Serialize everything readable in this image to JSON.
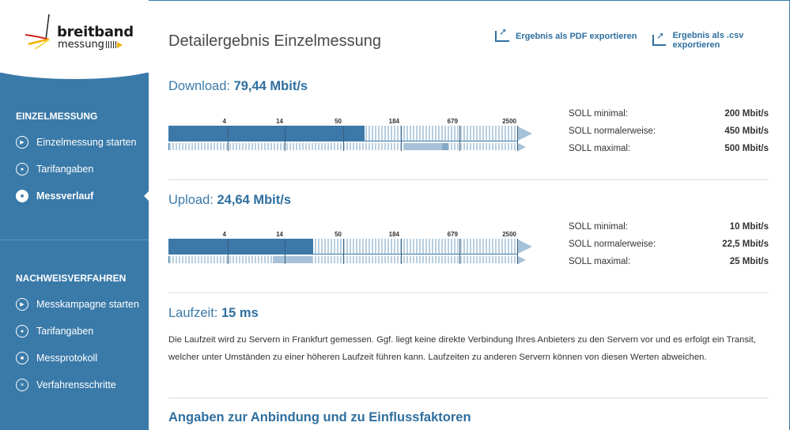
{
  "logo": {
    "line1": "breitband",
    "line2": "messung"
  },
  "sidebar": {
    "section1": {
      "heading": "EINZELMESSUNG",
      "items": [
        {
          "label": "Einzelmessung starten",
          "icon": "play-icon"
        },
        {
          "label": "Tarifangaben",
          "icon": "user-icon"
        },
        {
          "label": "Messverlauf",
          "icon": "save-icon",
          "active": true
        }
      ]
    },
    "section2": {
      "heading": "NACHWEISVERFAHREN",
      "items": [
        {
          "label": "Messkampagne starten",
          "icon": "play-icon"
        },
        {
          "label": "Tarifangaben",
          "icon": "user-icon"
        },
        {
          "label": "Messprotokoll",
          "icon": "save-icon"
        },
        {
          "label": "Verfahrensschritte",
          "icon": "list-icon"
        }
      ]
    }
  },
  "header": {
    "title": "Detailergebnis Einzelmessung",
    "export_pdf": "Ergebnis als PDF exportieren",
    "export_csv": "Ergebnis als .csv exportieren"
  },
  "scale_ticks": [
    "4",
    "14",
    "50",
    "184",
    "679",
    "2500"
  ],
  "download": {
    "label": "Download:",
    "value": "79,44 Mbit/s",
    "soll": [
      {
        "label": "SOLL minimal:",
        "value": "200 Mbit/s"
      },
      {
        "label": "SOLL normalerweise:",
        "value": "450 Mbit/s"
      },
      {
        "label": "SOLL maximal:",
        "value": "500 Mbit/s"
      }
    ]
  },
  "upload": {
    "label": "Upload:",
    "value": "24,64 Mbit/s",
    "soll": [
      {
        "label": "SOLL minimal:",
        "value": "10 Mbit/s"
      },
      {
        "label": "SOLL normalerweise:",
        "value": "22,5 Mbit/s"
      },
      {
        "label": "SOLL maximal:",
        "value": "25 Mbit/s"
      }
    ]
  },
  "latency": {
    "label": "Laufzeit:",
    "value": "15 ms",
    "description": "Die Laufzeit wird zu Servern in Frankfurt gemessen. Ggf. liegt keine direkte Verbindung Ihres Anbieters zu den Servern vor und es erfolgt ein Transit, welcher unter Umständen zu einer höheren Laufzeit führen kann. Laufzeiten zu anderen Servern können von diesen Werten abweichen."
  },
  "next_section": {
    "title": "Angaben zur Anbindung und zu Einflussfaktoren"
  },
  "colors": {
    "sidebar": "#3a7aa9",
    "bar": "#3c78a8",
    "accent": "#2f6f9f"
  }
}
